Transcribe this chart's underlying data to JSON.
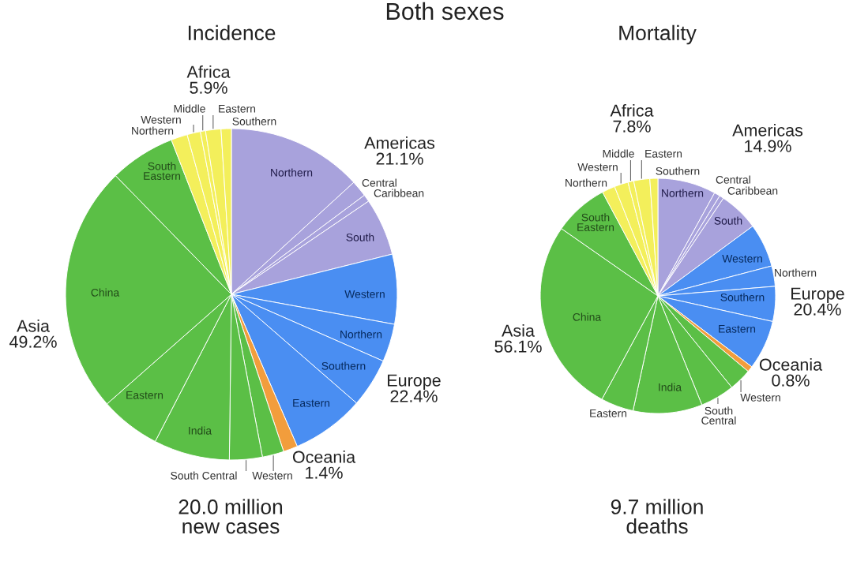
{
  "chart_data": [
    {
      "type": "pie",
      "title": "Both sexes",
      "subtitle": "Incidence",
      "categories": [
        "Northern",
        "Central",
        "Caribbean",
        "South",
        "Western",
        "Northern",
        "Southern",
        "Eastern",
        null,
        "Western",
        "South Central",
        "India",
        "Eastern",
        "China",
        "South Eastern",
        "Northern",
        "Western",
        "Middle",
        "Eastern",
        "Southern"
      ],
      "values": [
        13.2,
        1.6,
        0.7,
        5.6,
        6.8,
        3.7,
        4.8,
        7.1,
        1.4,
        2.1,
        3.2,
        7.4,
        5.9,
        24.2,
        6.4,
        1.6,
        1.3,
        0.5,
        1.5,
        1.0
      ],
      "colors": [
        "#a8a2dc",
        "#a8a2dc",
        "#a8a2dc",
        "#a8a2dc",
        "#4a8ef2",
        "#4a8ef2",
        "#4a8ef2",
        "#4a8ef2",
        "#f29d3c",
        "#5bbf46",
        "#5bbf46",
        "#5bbf46",
        "#5bbf46",
        "#5bbf46",
        "#5bbf46",
        "#f3ef5b",
        "#f3ef5b",
        "#f3ef5b",
        "#f3ef5b",
        "#f3ef5b"
      ],
      "annotations": [
        "Americas 21.1%",
        "Europe 22.4%",
        "Oceania 1.4%",
        "Asia 49.2%",
        "Africa 5.9%",
        "20.0 million new cases"
      ]
    },
    {
      "type": "pie",
      "subtitle": "Mortality",
      "categories": [
        "Northern",
        "Central",
        "Caribbean",
        "South",
        "Western",
        "Northern",
        "Southern",
        "Eastern",
        null,
        "Western",
        "South Central",
        "India",
        "Eastern",
        "China",
        "South Eastern",
        "Northern",
        "Western",
        "Middle",
        "Eastern",
        "Southern"
      ],
      "values": [
        8.0,
        0.8,
        0.6,
        5.5,
        6.0,
        2.8,
        4.8,
        6.8,
        0.8,
        3.1,
        4.7,
        9.5,
        4.5,
        26.8,
        7.5,
        1.8,
        1.9,
        0.8,
        2.2,
        1.1
      ],
      "colors": [
        "#a8a2dc",
        "#a8a2dc",
        "#a8a2dc",
        "#a8a2dc",
        "#4a8ef2",
        "#4a8ef2",
        "#4a8ef2",
        "#4a8ef2",
        "#f29d3c",
        "#5bbf46",
        "#5bbf46",
        "#5bbf46",
        "#5bbf46",
        "#5bbf46",
        "#5bbf46",
        "#f3ef5b",
        "#f3ef5b",
        "#f3ef5b",
        "#f3ef5b",
        "#f3ef5b"
      ],
      "annotations": [
        "Americas 14.9%",
        "Europe 20.4%",
        "Oceania 0.8%",
        "Asia 56.1%",
        "Africa 7.8%",
        "9.7 million deaths"
      ]
    }
  ]
}
